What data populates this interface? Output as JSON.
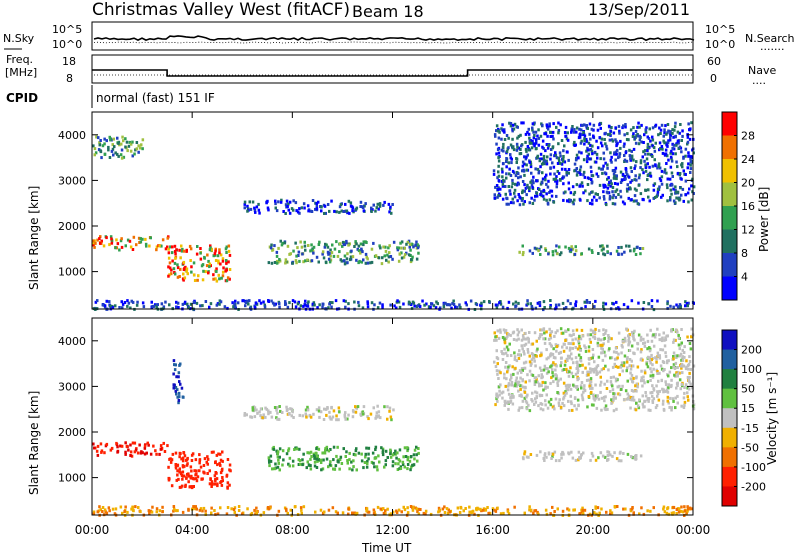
{
  "header": {
    "title": "Christmas Valley West (fitACF)",
    "beam": "Beam 18",
    "date": "13/Sep/2011"
  },
  "noise_panel": {
    "left_label": "N.Sky",
    "left_ticks": [
      "10^5",
      "10^0"
    ],
    "right_ticks": [
      "10^5",
      "10^0"
    ],
    "right_label": "N.Search",
    "right_legend_marker": "......."
  },
  "freq_panel": {
    "label_top": "Freq.",
    "label_bottom": "[MHz]",
    "left_ticks": [
      "18",
      "8"
    ],
    "right_ticks": [
      "60",
      "0"
    ],
    "right_label": "Nave",
    "right_legend_marker": "....",
    "freq_segments_mhz": [
      {
        "from": 0,
        "to": 3.0,
        "value": 14.5
      },
      {
        "from": 3.0,
        "to": 15.0,
        "value": 11.5
      },
      {
        "from": 15.0,
        "to": 24.0,
        "value": 14.5
      }
    ]
  },
  "cpid": {
    "label": "CPID",
    "value": "normal (fast) 151 IF"
  },
  "x_axis": {
    "label": "Time UT",
    "ticks": [
      "00:00",
      "04:00",
      "08:00",
      "12:00",
      "16:00",
      "20:00",
      "00:00"
    ],
    "range_hours": [
      0,
      24
    ]
  },
  "y_axis": {
    "label": "Slant Range [km]",
    "ticks": [
      "1000",
      "2000",
      "3000",
      "4000"
    ],
    "range_km": [
      180,
      4500
    ]
  },
  "power_colorbar": {
    "label": "Power [dB]",
    "ticks": [
      "4",
      "8",
      "12",
      "16",
      "20",
      "24",
      "28"
    ],
    "colors": [
      "#0000ff",
      "#2040c0",
      "#207060",
      "#30a050",
      "#a0c040",
      "#f0c000",
      "#f07000",
      "#ff0000"
    ]
  },
  "velocity_colorbar": {
    "label": "Velocity [m s⁻¹]",
    "ticks": [
      "200",
      "100",
      "50",
      "15",
      "-15",
      "-50",
      "-100",
      "-200"
    ],
    "colors": [
      "#1010c0",
      "#2060a0",
      "#208040",
      "#60c040",
      "#c0c0c0",
      "#f0b000",
      "#f07000",
      "#ff2000",
      "#e00000"
    ]
  },
  "chart_data": [
    {
      "type": "heatmap",
      "title": "Power",
      "xlabel": "Time UT",
      "ylabel": "Slant Range [km]",
      "xlim": [
        0,
        24
      ],
      "ylim": [
        180,
        4500
      ],
      "colorbar_label": "Power [dB]",
      "regions": [
        {
          "t": [
            0.0,
            3.0
          ],
          "km": [
            1500,
            1800
          ],
          "level": "high"
        },
        {
          "t": [
            3.0,
            5.5
          ],
          "km": [
            800,
            1600
          ],
          "level": "high"
        },
        {
          "t": [
            0.0,
            2.0
          ],
          "km": [
            3500,
            4000
          ],
          "level": "mid"
        },
        {
          "t": [
            7.0,
            13.0
          ],
          "km": [
            1200,
            1700
          ],
          "level": "mid"
        },
        {
          "t": [
            6.0,
            12.0
          ],
          "km": [
            2300,
            2600
          ],
          "level": "low"
        },
        {
          "t": [
            16.0,
            24.0
          ],
          "km": [
            2500,
            4300
          ],
          "level": "low"
        },
        {
          "t": [
            17.0,
            22.0
          ],
          "km": [
            1400,
            1600
          ],
          "level": "mid"
        },
        {
          "t": [
            0.0,
            24.0
          ],
          "km": [
            200,
            400
          ],
          "level": "low"
        }
      ]
    },
    {
      "type": "heatmap",
      "title": "Velocity",
      "xlabel": "Time UT",
      "ylabel": "Slant Range [km]",
      "xlim": [
        0,
        24
      ],
      "ylim": [
        180,
        4500
      ],
      "colorbar_label": "Velocity [m s⁻¹]",
      "regions": [
        {
          "t": [
            0.0,
            3.0
          ],
          "km": [
            1500,
            1800
          ],
          "velocity": -200
        },
        {
          "t": [
            3.0,
            5.5
          ],
          "km": [
            800,
            1600
          ],
          "velocity": -150
        },
        {
          "t": [
            3.2,
            3.6
          ],
          "km": [
            2600,
            3600
          ],
          "velocity": 200
        },
        {
          "t": [
            7.0,
            13.0
          ],
          "km": [
            1200,
            1700
          ],
          "velocity": 50
        },
        {
          "t": [
            6.0,
            12.0
          ],
          "km": [
            2300,
            2600
          ],
          "velocity": 0
        },
        {
          "t": [
            16.0,
            24.0
          ],
          "km": [
            2500,
            4300
          ],
          "velocity": 0
        },
        {
          "t": [
            17.0,
            22.0
          ],
          "km": [
            1400,
            1600
          ],
          "velocity": 0
        },
        {
          "t": [
            0.0,
            24.0
          ],
          "km": [
            200,
            400
          ],
          "velocity": -50
        }
      ]
    }
  ]
}
